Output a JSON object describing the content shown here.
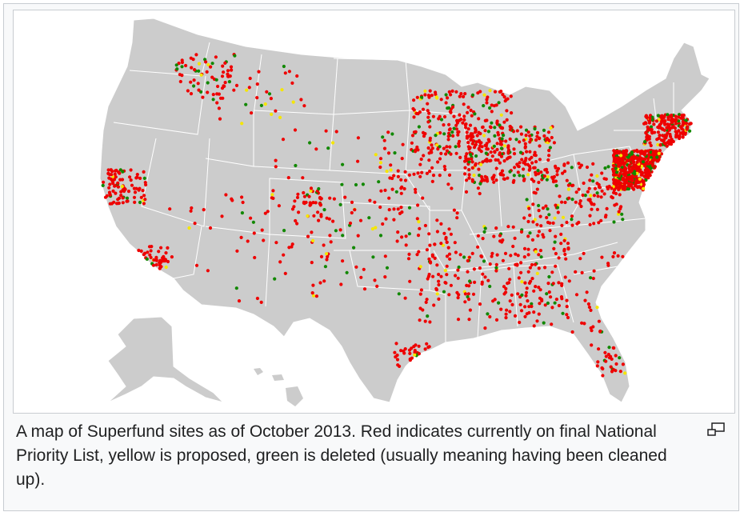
{
  "figure": {
    "caption": "A map of Superfund sites as of October 2013. Red indicates currently on final National Priority List, yellow is proposed, green is deleted (usually meaning having been cleaned up).",
    "enlarge_icon": "magnify-clip-icon"
  },
  "map": {
    "land_color": "#cccccc",
    "border_color": "#ffffff",
    "legend_colors": {
      "final": "#ee0000",
      "proposed": "#f5e600",
      "deleted": "#118800"
    }
  }
}
